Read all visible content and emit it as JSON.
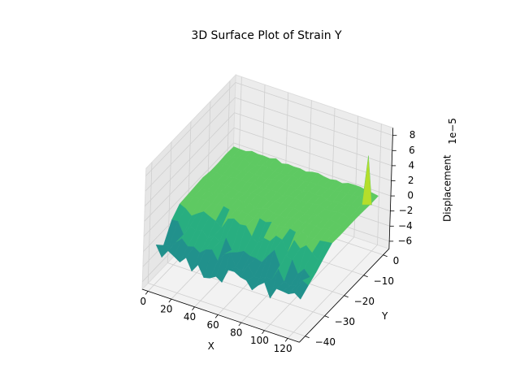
{
  "chart_data": {
    "type": "surface3d",
    "title": "3D Surface Plot of Strain Y",
    "xlabel": "X",
    "ylabel": "Y",
    "zlabel": "Displacement",
    "z_offset_label": "1e−5",
    "colormap": "viridis",
    "xlim": [
      -5,
      130
    ],
    "ylim": [
      -43,
      3
    ],
    "zlim": [
      -7,
      9
    ],
    "xticks": [
      0,
      20,
      40,
      60,
      80,
      100,
      120
    ],
    "yticks": [
      0,
      {
        "value": -10,
        "label": "−10"
      },
      {
        "value": -20,
        "label": "−20"
      },
      {
        "value": -30,
        "label": "−30"
      },
      {
        "value": -40,
        "label": "−40"
      }
    ],
    "zticks": [
      {
        "value": -6,
        "label": "−6"
      },
      {
        "value": -4,
        "label": "−4"
      },
      {
        "value": -2,
        "label": "−2"
      },
      0,
      2,
      4,
      6,
      8
    ],
    "grid": true
  }
}
